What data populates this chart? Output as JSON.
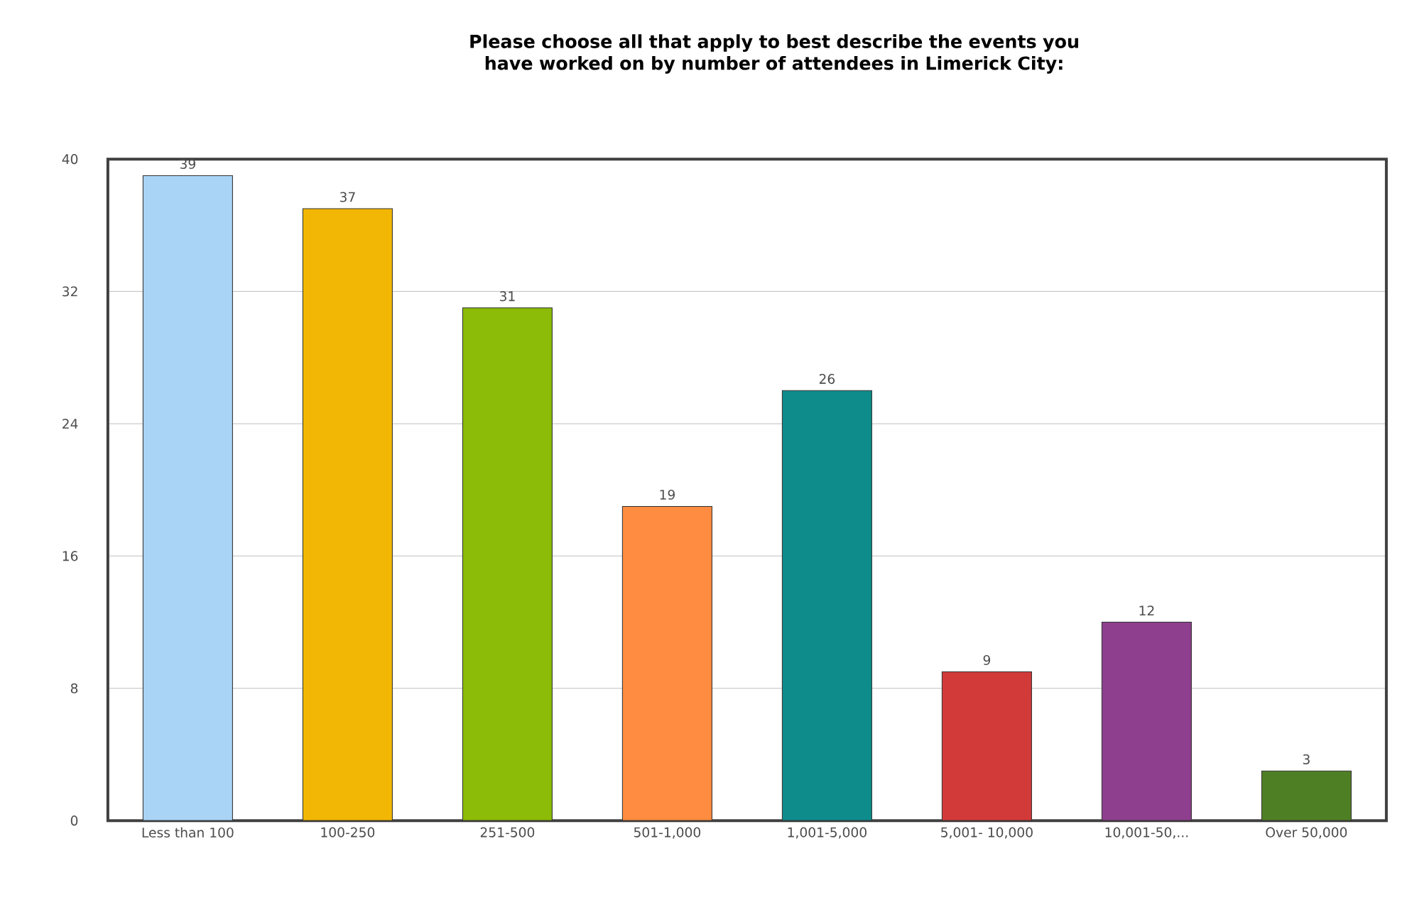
{
  "chart_data": {
    "type": "bar",
    "title": "**Please choose all that apply to best describe the events you have worked on by number of attendees in Limerick City:**",
    "categories": [
      "Less than 100",
      "100-250",
      "251-500",
      "501-1,000",
      "1,001-5,000",
      "5,001- 10,000",
      "10,001-50,...",
      "Over 50,000"
    ],
    "values": [
      39,
      37,
      31,
      19,
      26,
      9,
      12,
      3
    ],
    "colors": [
      "#a9d4f5",
      "#f2b705",
      "#8cbb08",
      "#ff8c40",
      "#0e8c8c",
      "#d23a3a",
      "#8e3f8e",
      "#4f7f24"
    ],
    "ylim": [
      0,
      40
    ],
    "yticks": [
      0,
      8,
      16,
      24,
      32,
      40
    ],
    "grid": "y",
    "data_labels": true
  }
}
